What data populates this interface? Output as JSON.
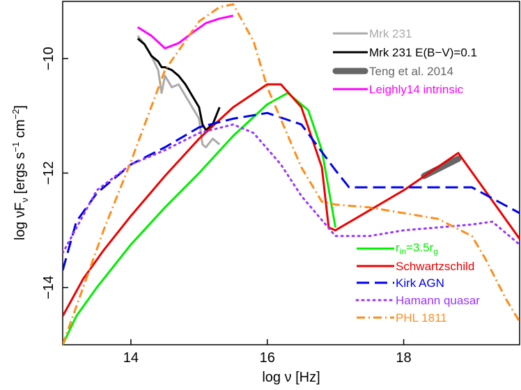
{
  "chart_data": {
    "type": "line",
    "xlabel": "log ν [Hz]",
    "ylabel": "log νF_ν [ergs s⁻¹ cm⁻²]",
    "xlim": [
      13.0,
      19.7
    ],
    "ylim": [
      -15.0,
      -9.0
    ],
    "x_ticks": [
      14,
      16,
      18
    ],
    "y_ticks": [
      -10,
      -12,
      -14
    ],
    "x_tick_labels": [
      "14",
      "16",
      "18"
    ],
    "y_tick_labels": [
      "−10",
      "−12",
      "−14"
    ],
    "grid": false,
    "legend_top": {
      "placement": "top-right",
      "entries": [
        "Mrk 231",
        "Mrk 231 E(B−V)=0.1",
        "Teng et al. 2014",
        "Leighly14 intrinsic"
      ]
    },
    "legend_bottom": {
      "placement": "bottom-right",
      "entries": [
        "r_in=3.5r_g",
        "Schwartzschild",
        "Kirk AGN",
        "Hamann quasar",
        "PHL 1811"
      ]
    },
    "series": [
      {
        "name": "Mrk 231",
        "color": "#aaaaaa",
        "dash": "solid",
        "x": [
          14.1,
          14.2,
          14.3,
          14.4,
          14.45,
          14.5,
          14.6,
          14.7,
          14.8,
          14.9,
          15.0,
          15.05,
          15.1,
          15.2,
          15.3
        ],
        "y": [
          -9.6,
          -9.75,
          -9.95,
          -10.2,
          -10.6,
          -10.3,
          -10.5,
          -10.45,
          -10.65,
          -10.85,
          -11.05,
          -11.5,
          -11.55,
          -11.4,
          -11.5
        ]
      },
      {
        "name": "Mrk 231 E(B−V)=0.1",
        "color": "#000000",
        "dash": "solid",
        "x": [
          14.1,
          14.2,
          14.3,
          14.4,
          14.45,
          14.5,
          14.6,
          14.7,
          14.8,
          14.9,
          15.0,
          15.05,
          15.1,
          15.2,
          15.3
        ],
        "y": [
          -9.65,
          -9.75,
          -9.95,
          -10.05,
          -10.15,
          -10.15,
          -10.2,
          -10.3,
          -10.45,
          -10.65,
          -10.85,
          -11.15,
          -11.25,
          -11.15,
          -10.85
        ]
      },
      {
        "name": "Teng et al. 2014",
        "color": "#666666",
        "dash": "solid",
        "x": [
          18.3,
          18.8
        ],
        "y": [
          -12.05,
          -11.75
        ]
      },
      {
        "name": "Leighly14 intrinsic",
        "color": "#ff00ff",
        "dash": "solid",
        "x": [
          14.1,
          14.3,
          14.5,
          14.7,
          14.9,
          15.1,
          15.3,
          15.5
        ],
        "y": [
          -9.45,
          -9.6,
          -9.82,
          -9.73,
          -9.55,
          -9.38,
          -9.3,
          -9.25
        ]
      },
      {
        "name": "r_in=3.5r_g",
        "color": "#00ee00",
        "dash": "solid",
        "x": [
          13.0,
          13.2,
          13.5,
          14.0,
          14.5,
          15.0,
          15.5,
          16.0,
          16.3,
          16.6,
          16.8,
          17.0
        ],
        "y": [
          -15.0,
          -14.5,
          -14.0,
          -13.25,
          -12.6,
          -12.0,
          -11.35,
          -10.8,
          -10.6,
          -10.9,
          -11.6,
          -12.95
        ]
      },
      {
        "name": "Schwartzschild",
        "color": "#ee0000",
        "dash": "solid",
        "x": [
          13.0,
          13.3,
          13.6,
          14.0,
          14.5,
          15.0,
          15.5,
          16.0,
          16.2,
          16.5,
          16.8,
          16.9,
          17.0,
          18.0,
          18.8,
          19.7
        ],
        "y": [
          -14.5,
          -13.85,
          -13.35,
          -12.75,
          -12.05,
          -11.4,
          -10.85,
          -10.45,
          -10.45,
          -10.85,
          -11.9,
          -12.95,
          -13.0,
          -12.3,
          -11.65,
          -13.15
        ]
      },
      {
        "name": "Kirk AGN",
        "color": "#0000ee",
        "dash": "dashed",
        "x": [
          13.0,
          13.2,
          13.5,
          14.0,
          14.5,
          15.0,
          15.5,
          16.0,
          16.5,
          17.0,
          17.2,
          17.5,
          18.0,
          19.0,
          19.7
        ],
        "y": [
          -13.7,
          -12.85,
          -12.35,
          -11.85,
          -11.55,
          -11.2,
          -11.05,
          -10.95,
          -11.15,
          -11.95,
          -12.25,
          -12.25,
          -12.25,
          -12.25,
          -12.7
        ]
      },
      {
        "name": "Hamann quasar",
        "color": "#9933ff",
        "dash": "dotted",
        "x": [
          13.0,
          13.5,
          14.0,
          14.5,
          15.0,
          15.5,
          15.8,
          16.2,
          16.5,
          17.0,
          17.5,
          18.0,
          18.5,
          19.0,
          19.3,
          19.7
        ],
        "y": [
          -13.4,
          -12.3,
          -11.85,
          -11.6,
          -11.3,
          -11.15,
          -11.3,
          -11.85,
          -12.4,
          -13.1,
          -13.1,
          -13.0,
          -12.95,
          -12.9,
          -12.85,
          -13.25
        ]
      },
      {
        "name": "PHL 1811",
        "color": "#ff8c1a",
        "dash": "dashdot",
        "x": [
          13.0,
          13.3,
          13.6,
          14.0,
          14.5,
          15.0,
          15.3,
          15.5,
          15.8,
          16.0,
          16.5,
          16.8,
          17.0,
          17.5,
          18.0,
          18.5,
          19.0,
          19.2,
          19.5,
          19.7
        ],
        "y": [
          -15.0,
          -14.0,
          -13.0,
          -11.8,
          -10.2,
          -9.35,
          -9.1,
          -9.05,
          -9.7,
          -10.5,
          -11.9,
          -12.5,
          -12.55,
          -12.6,
          -12.7,
          -12.8,
          -13.1,
          -13.5,
          -14.2,
          -14.6
        ]
      }
    ]
  },
  "legend": {
    "top": [
      "Mrk 231",
      "Mrk 231 E(B−V)=0.1",
      "Teng et al. 2014",
      "Leighly14 intrinsic"
    ],
    "bottom": {
      "rin_r": "r",
      "rin_sub1": "in",
      "rin_mid": "=3.5r",
      "rin_sub2": "g",
      "schwartzschild": "Schwartzschild",
      "kirk": "Kirk AGN",
      "hamann": "Hamann quasar",
      "phl": "PHL 1811"
    }
  },
  "axes": {
    "xlabel_main": "log ν [Hz]",
    "ylabel_pre": "log νF",
    "ylabel_sub": "ν",
    "ylabel_mid": " [ergs s",
    "ylabel_sup1": "−1",
    "ylabel_cm": " cm",
    "ylabel_sup2": "−2",
    "ylabel_end": "]"
  }
}
